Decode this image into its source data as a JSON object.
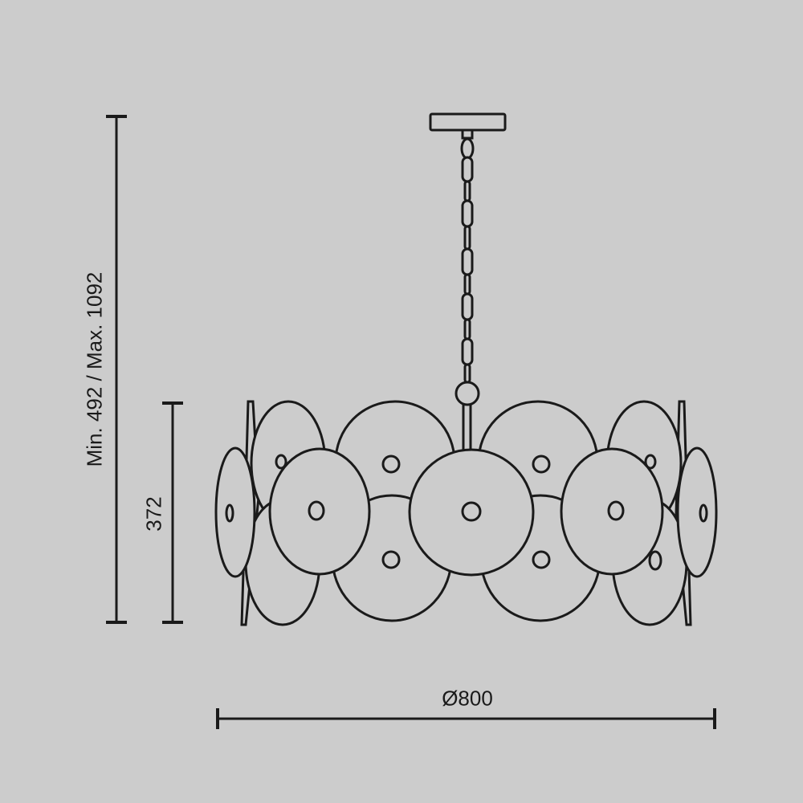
{
  "drawing": {
    "subject": "pendant chandelier with overlapping discs",
    "line_color": "#1a1a1a",
    "background_color": "#cccccc"
  },
  "dimensions": {
    "overall_height": "Min. 492 / Max. 1092",
    "body_height": "372",
    "diameter": "Ø800"
  }
}
